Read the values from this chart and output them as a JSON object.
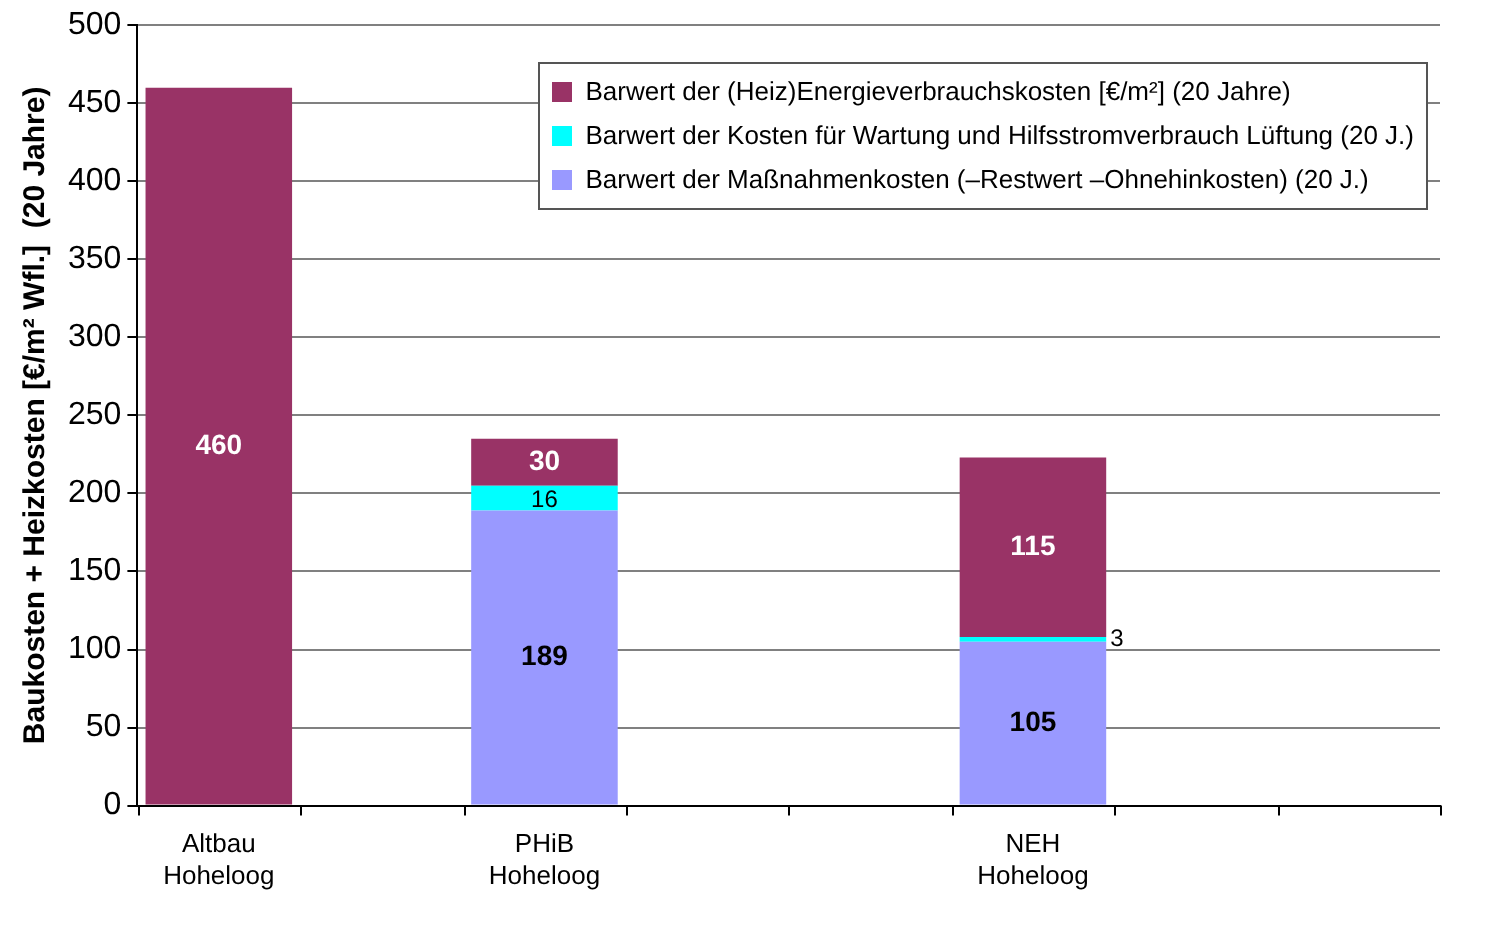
{
  "chart_data": {
    "type": "bar",
    "stacked": true,
    "ylabel": "Baukosten + Heizkosten [€/m² Wfl.]  (20 Jahre)",
    "categories": [
      "Altbau\nHoheloog",
      null,
      "PHiB\nHoheloog",
      null,
      null,
      "NEH\nHoheloog",
      null,
      null
    ],
    "series": [
      {
        "name": "Barwert der Maßnahmenkosten (–Restwert –Ohnehinkosten)  (20 J.)",
        "color": "#9999ff",
        "values": [
          null,
          null,
          189,
          null,
          null,
          105,
          null,
          null
        ]
      },
      {
        "name": "Barwert der Kosten für Wartung und Hilfsstromverbrauch Lüftung (20 J.)",
        "color": "#00ffff",
        "values": [
          null,
          null,
          16,
          null,
          null,
          3,
          null,
          null
        ]
      },
      {
        "name": "Barwert der (Heiz)Energieverbrauchskosten [€/m²]  (20 Jahre)",
        "color": "#993366",
        "values": [
          460,
          null,
          30,
          null,
          null,
          115,
          null,
          null
        ]
      }
    ],
    "ylim": [
      0,
      500
    ],
    "yticks": [
      0,
      50,
      100,
      150,
      200,
      250,
      300,
      350,
      400,
      450,
      500
    ],
    "grid": "y",
    "legend": "top right",
    "data_labels": true
  }
}
